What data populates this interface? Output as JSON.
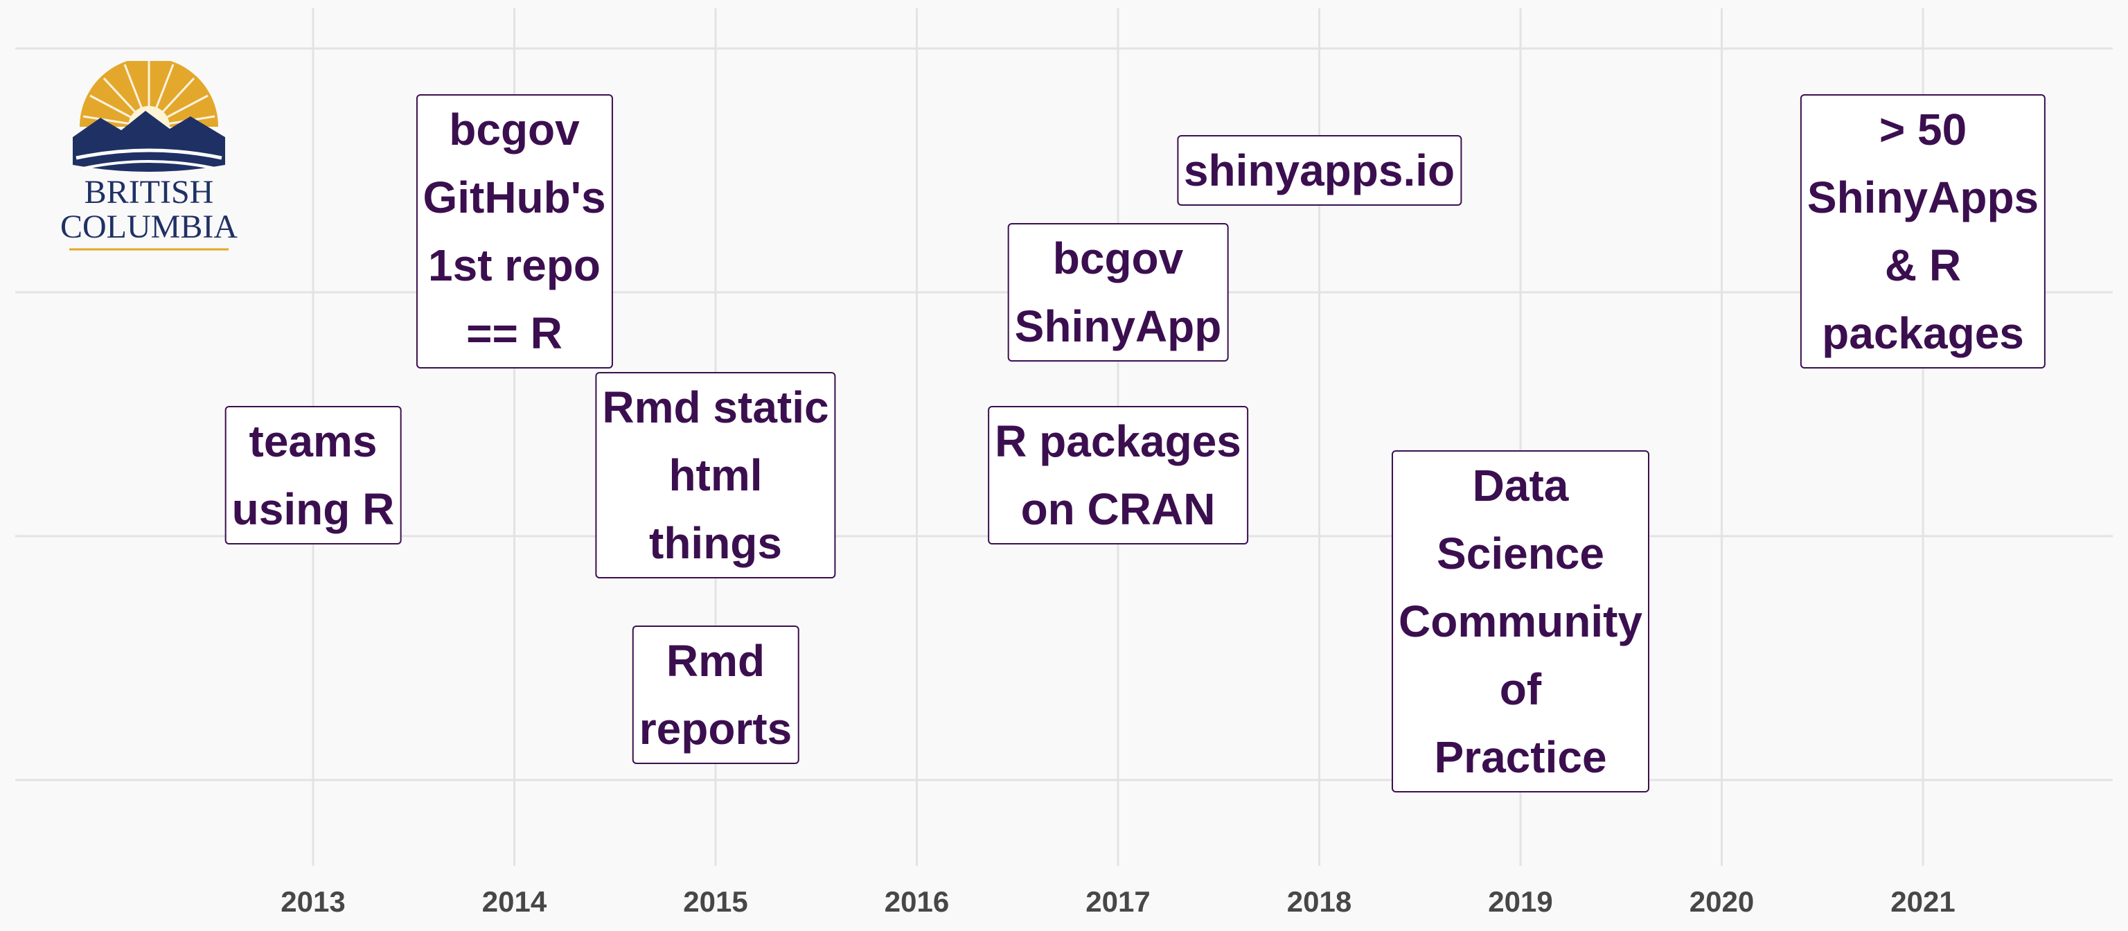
{
  "colors": {
    "background": "#f9f9f9",
    "grid": "#e3e3e3",
    "box_text": "#3b0f4f",
    "box_border": "#3b0f4f",
    "tick_text": "#474747",
    "logo_navy": "#1f3164",
    "logo_gold": "#e3a82b"
  },
  "logo": {
    "line1": "BRITISH",
    "line2": "COLUMBIA",
    "icon": "bc-sun-mountain-logo"
  },
  "chart_data": {
    "type": "scatter",
    "title": "",
    "xlabel": "",
    "ylabel": "",
    "xlim": [
      2011.5,
      2022.2
    ],
    "ylim": [
      0,
      3.3
    ],
    "grid": true,
    "legend": "none",
    "x_ticks": [
      "2013",
      "2014",
      "2015",
      "2016",
      "2017",
      "2018",
      "2019",
      "2020",
      "2021"
    ],
    "points": [
      {
        "x": 2013.0,
        "y": 1.25,
        "lines": [
          "teams",
          "using R"
        ]
      },
      {
        "x": 2014.0,
        "y": 2.25,
        "lines": [
          "bcgov",
          "GitHub's",
          "1st repo",
          "== R"
        ]
      },
      {
        "x": 2015.0,
        "y": 1.25,
        "lines": [
          "Rmd static",
          "html",
          "things"
        ]
      },
      {
        "x": 2015.0,
        "y": 0.35,
        "lines": [
          "Rmd",
          "reports"
        ]
      },
      {
        "x": 2017.0,
        "y": 2.0,
        "lines": [
          "bcgov",
          "ShinyApp"
        ]
      },
      {
        "x": 2017.0,
        "y": 1.25,
        "lines": [
          "R packages",
          "on CRAN"
        ]
      },
      {
        "x": 2018.0,
        "y": 2.5,
        "lines": [
          "shinyapps.io"
        ]
      },
      {
        "x": 2019.0,
        "y": 0.65,
        "lines": [
          "Data",
          "Science",
          "Community",
          "of",
          "Practice"
        ]
      },
      {
        "x": 2021.0,
        "y": 2.25,
        "lines": [
          "> 50",
          "ShinyApps",
          "& R",
          "packages"
        ]
      }
    ]
  }
}
